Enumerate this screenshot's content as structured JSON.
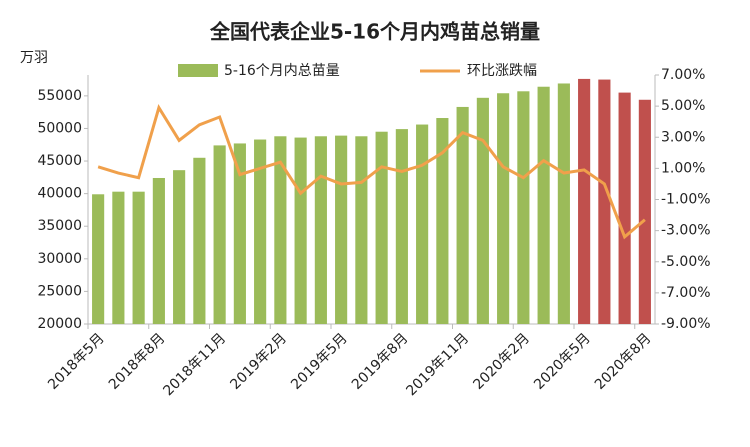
{
  "chart_data": {
    "type": "bar_line",
    "title": "全国代表企业5-16个月内鸡苗总销量",
    "y_label": "万羽",
    "categories": [
      "2018年5月",
      null,
      null,
      "2018年8月",
      null,
      null,
      "2018年11月",
      null,
      null,
      "2019年2月",
      null,
      null,
      "2019年5月",
      null,
      null,
      "2019年8月",
      null,
      null,
      "2019年11月",
      null,
      null,
      "2020年2月",
      null,
      null,
      "2020年5月",
      null,
      null,
      "2020年8月"
    ],
    "series": [
      {
        "name": "5-16个月内总苗量",
        "color": "#9bbb59",
        "point_colors": [
          "#9bbb59",
          "#9bbb59",
          "#9bbb59",
          "#9bbb59",
          "#9bbb59",
          "#9bbb59",
          "#9bbb59",
          "#9bbb59",
          "#9bbb59",
          "#9bbb59",
          "#9bbb59",
          "#9bbb59",
          "#9bbb59",
          "#9bbb59",
          "#9bbb59",
          "#9bbb59",
          "#9bbb59",
          "#9bbb59",
          "#9bbb59",
          "#9bbb59",
          "#9bbb59",
          "#9bbb59",
          "#9bbb59",
          "#9bbb59",
          "#c0504d",
          "#c0504d",
          "#c0504d",
          "#c0504d"
        ],
        "values": [
          39900,
          40300,
          40300,
          42400,
          43600,
          45500,
          47400,
          47700,
          48300,
          48800,
          48600,
          48800,
          48900,
          48800,
          49500,
          49900,
          50600,
          51600,
          53300,
          54700,
          55400,
          55700,
          56400,
          56900,
          57600,
          57500,
          55500,
          54400
        ]
      },
      {
        "name": "环比涨跌幅",
        "color": "#f0a04b",
        "axis": "y2",
        "values": [
          1.1,
          0.7,
          0.4,
          4.9,
          2.8,
          3.8,
          4.3,
          0.6,
          1.0,
          1.4,
          -0.6,
          0.5,
          0.0,
          0.1,
          1.1,
          0.8,
          1.2,
          2.0,
          3.3,
          2.8,
          1.1,
          0.4,
          1.5,
          0.7,
          0.9,
          0.0,
          -3.4,
          -2.3
        ]
      }
    ],
    "ylim": [
      20000,
      58200
    ],
    "yticks": [
      20000,
      25000,
      30000,
      35000,
      40000,
      45000,
      50000,
      55000
    ],
    "y2lim": [
      -9,
      7
    ],
    "y2ticks": [
      {
        "value": 7,
        "label": "7.00%"
      },
      {
        "value": 5,
        "label": "5.00%"
      },
      {
        "value": 3,
        "label": "3.00%"
      },
      {
        "value": 1,
        "label": "1.00%"
      },
      {
        "value": -1,
        "label": "-1.00%"
      },
      {
        "value": -3,
        "label": "-3.00%"
      },
      {
        "value": -5,
        "label": "-5.00%"
      },
      {
        "value": -7,
        "label": "-7.00%"
      },
      {
        "value": -9,
        "label": "-9.00%"
      }
    ]
  }
}
